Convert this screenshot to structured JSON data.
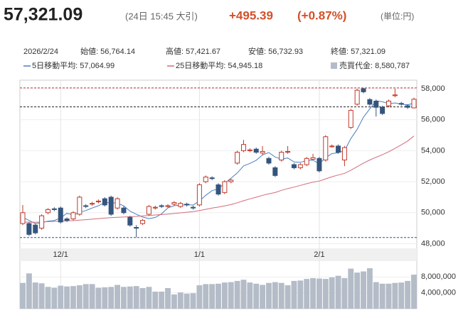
{
  "header": {
    "price": "57,321.09",
    "time": "(24日 15:45 大引)",
    "change": "+495.39",
    "change_pct": "(+0.87%)",
    "unit": "(単位:円)"
  },
  "summary": [
    "2026/2/24",
    "始値: 56,764.14",
    "高値: 57,421.67",
    "安値: 56,732.93",
    "終値: 57,321.09"
  ],
  "chart_data": {
    "type": "candlestick",
    "categories": [
      null,
      null,
      null,
      null,
      null,
      null,
      "12/1",
      null,
      null,
      null,
      null,
      null,
      null,
      null,
      null,
      null,
      null,
      null,
      null,
      null,
      null,
      null,
      null,
      null,
      null,
      null,
      null,
      null,
      "1/1",
      null,
      null,
      null,
      null,
      null,
      null,
      null,
      null,
      null,
      null,
      null,
      null,
      null,
      null,
      null,
      null,
      null,
      null,
      "2/1",
      null,
      null,
      null,
      null,
      null,
      null,
      null,
      null,
      null,
      null,
      null,
      null,
      null,
      null,
      null
    ],
    "open": [
      49300,
      49300,
      49200,
      49000,
      50000,
      50250,
      50300,
      49600,
      49600,
      49900,
      50450,
      50550,
      50700,
      50900,
      51000,
      50300,
      50300,
      49700,
      49050,
      49300,
      49900,
      50300,
      50450,
      50400,
      50550,
      50400,
      50550,
      50350,
      50500,
      52000,
      52250,
      51800,
      51300,
      52000,
      53200,
      54000,
      54000,
      54100,
      53850,
      53500,
      52900,
      53400,
      53900,
      53100,
      52900,
      53100,
      53450,
      53500,
      53400,
      54250,
      54300,
      53400,
      55500,
      57000,
      58000,
      57300,
      57200,
      56800,
      56900,
      57550,
      57050,
      56900,
      56764.14
    ],
    "high": [
      50500,
      49400,
      49300,
      49900,
      50300,
      50350,
      50400,
      49700,
      50100,
      51100,
      50550,
      50700,
      50850,
      51000,
      51100,
      51000,
      50400,
      49800,
      49200,
      49600,
      50500,
      50450,
      50550,
      50550,
      50750,
      50700,
      50650,
      50450,
      51900,
      52400,
      52350,
      51900,
      52100,
      52200,
      54000,
      54700,
      54150,
      54200,
      54300,
      53600,
      53000,
      54000,
      54300,
      53200,
      53200,
      53600,
      53800,
      53600,
      55000,
      54400,
      54400,
      54300,
      56700,
      58000,
      58050,
      57400,
      57300,
      56900,
      57300,
      58000,
      57150,
      57000,
      57421.67
    ],
    "low": [
      49200,
      48500,
      48600,
      48900,
      49900,
      50100,
      49300,
      49400,
      49500,
      49800,
      50300,
      50450,
      50600,
      50400,
      49800,
      50200,
      49900,
      49100,
      48400,
      49200,
      49800,
      50200,
      50300,
      50300,
      50450,
      50300,
      50400,
      50200,
      50400,
      51900,
      52100,
      51100,
      51200,
      51900,
      53100,
      53900,
      53900,
      53800,
      53700,
      53100,
      52300,
      53300,
      53800,
      52800,
      52800,
      53000,
      53400,
      52600,
      53300,
      54200,
      53800,
      53000,
      55400,
      56900,
      57700,
      56900,
      56200,
      56300,
      56800,
      57450,
      56900,
      56700,
      56732.93
    ],
    "close": [
      50000,
      48600,
      48700,
      49800,
      50200,
      50200,
      49400,
      49500,
      50000,
      51000,
      50400,
      50600,
      50750,
      50500,
      49900,
      50900,
      50000,
      49200,
      49000,
      49500,
      50400,
      50350,
      50400,
      50450,
      50650,
      50600,
      50500,
      50300,
      51800,
      52300,
      52200,
      51200,
      52000,
      52100,
      53900,
      54400,
      54050,
      53900,
      53950,
      53200,
      52400,
      53900,
      53950,
      52900,
      53100,
      53500,
      53550,
      52700,
      54900,
      54300,
      53900,
      54200,
      56600,
      57900,
      57800,
      57000,
      56800,
      56400,
      57200,
      57600,
      57000,
      56800,
      57321.09
    ],
    "up_color": "#c0392b",
    "down_color": "#34557d",
    "series": [
      {
        "name": "5日移動平均: 57,064.99",
        "color": "#4a7fc1",
        "values": [
          49700,
          49500,
          49300,
          49350,
          49460,
          49500,
          49660,
          49960,
          49860,
          50020,
          50140,
          50300,
          50450,
          50650,
          50650,
          50610,
          50440,
          50100,
          49900,
          49720,
          49620,
          49690,
          49930,
          50310,
          50450,
          50480,
          50520,
          50490,
          50760,
          51120,
          51420,
          51540,
          51900,
          52220,
          52560,
          53020,
          53180,
          53380,
          53730,
          53880,
          53590,
          53460,
          53530,
          53270,
          53250,
          53370,
          53390,
          53150,
          53550,
          53810,
          53870,
          54000,
          54780,
          55380,
          56160,
          56700,
          57220,
          57160,
          57040,
          57080,
          57000,
          56960,
          57064.99
        ]
      },
      {
        "name": "25日移動平均: 54,945.18",
        "color": "#d36b7a",
        "values": [
          49400,
          49390,
          49380,
          49400,
          49420,
          49440,
          49450,
          49470,
          49490,
          49520,
          49550,
          49580,
          49620,
          49650,
          49680,
          49700,
          49720,
          49740,
          49760,
          49790,
          49820,
          49850,
          49880,
          49910,
          49950,
          49990,
          50030,
          50070,
          50140,
          50220,
          50300,
          50360,
          50440,
          50520,
          50640,
          50770,
          50890,
          51000,
          51120,
          51220,
          51300,
          51440,
          51560,
          51650,
          51760,
          51870,
          51970,
          52040,
          52180,
          52320,
          52430,
          52540,
          52740,
          52970,
          53200,
          53400,
          53580,
          53740,
          53930,
          54150,
          54380,
          54620,
          54945.18
        ]
      },
      {
        "name": "売買代金: 8,580,787",
        "color": "#b4bcc8",
        "axis": "y2",
        "values": [
          6500000,
          8900000,
          6600000,
          6400000,
          5500000,
          5300000,
          5800000,
          5600000,
          5700000,
          5900000,
          6200000,
          6200000,
          5300000,
          5400000,
          5500000,
          6000000,
          5500000,
          5600000,
          5700000,
          5200000,
          5500000,
          4300000,
          4300000,
          5200000,
          3600000,
          4100000,
          3800000,
          3900000,
          5900000,
          6200000,
          6200000,
          6300000,
          6600000,
          6700000,
          7000000,
          7300000,
          6600000,
          6300000,
          6000000,
          6500000,
          6700000,
          6500000,
          5900000,
          7000000,
          7100000,
          7500000,
          7700000,
          7600000,
          7500000,
          7900000,
          8300000,
          7700000,
          10100000,
          9100000,
          9400000,
          10200000,
          6700000,
          6300000,
          6300000,
          6500000,
          6600000,
          7000000,
          8580787
        ]
      }
    ],
    "ylim": [
      47700,
      58550
    ],
    "yticks": [
      {
        "value": 48000,
        "label": "48,000"
      },
      {
        "value": 50000,
        "label": "50,000"
      },
      {
        "value": 52000,
        "label": "52,000"
      },
      {
        "value": 54000,
        "label": "54,000"
      },
      {
        "value": 56000,
        "label": "56,000"
      },
      {
        "value": 58000,
        "label": "58,000"
      }
    ],
    "y2lim": [
      0,
      12000000
    ],
    "y2ticks": [
      {
        "value": 4000000,
        "label": "4,000,000"
      },
      {
        "value": 8000000,
        "label": "8,000,000"
      }
    ],
    "reference_lines": [
      {
        "value": 58050,
        "color": "#c0392b"
      },
      {
        "value": 56825.7,
        "color": "#222222"
      },
      {
        "value": 48400,
        "color": "#34557d"
      }
    ],
    "grid": true
  }
}
